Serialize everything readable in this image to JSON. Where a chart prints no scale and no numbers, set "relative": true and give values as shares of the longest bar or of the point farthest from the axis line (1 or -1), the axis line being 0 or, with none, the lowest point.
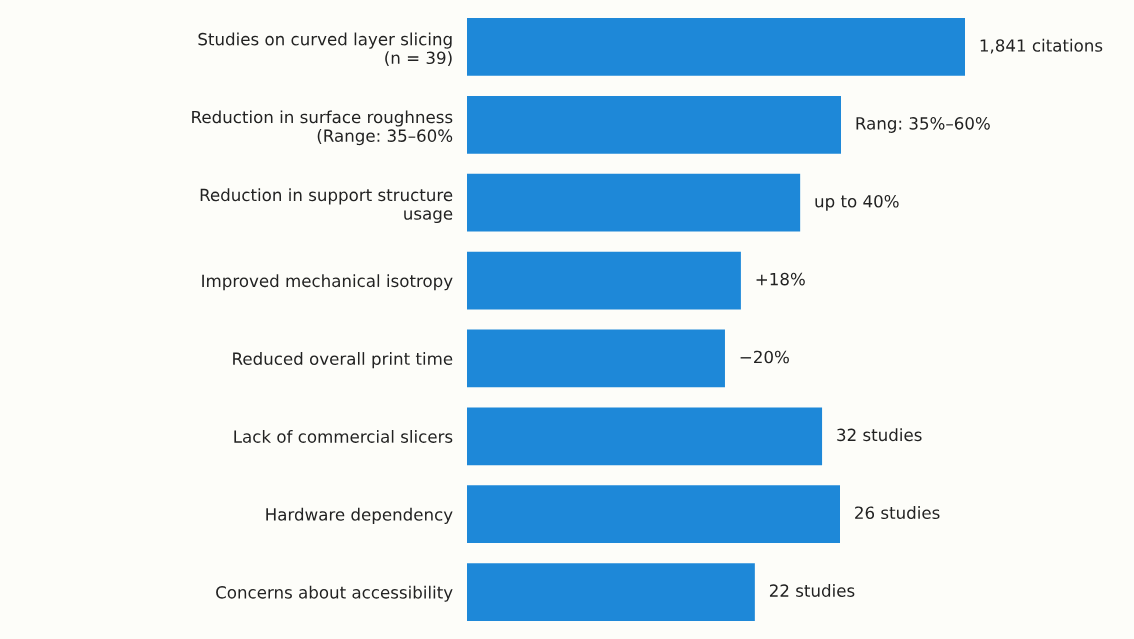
{
  "chart_data": {
    "type": "bar",
    "orientation": "horizontal",
    "relative": true,
    "categories": [
      "Studies on curved layer slicing\n(n = 39)",
      "Reduction in surface roughness\n(Range: 35–60%",
      "Reduction in support structure\nusage",
      "Improved mechanical isotropy",
      "Reduced overall print time",
      "Lack of commercial slicers",
      "Hardware dependency",
      "Concerns about accessibility"
    ],
    "values": [
      1,
      0.751,
      0.669,
      0.55,
      0.518,
      0.713,
      0.749,
      0.578
    ],
    "color": "#1e88d8",
    "annotations": [
      {
        "text": "1,841 citations",
        "x": 1,
        "y": "Studies on curved layer slicing\n(n = 39)"
      },
      {
        "text": "Rang: 35%–60%",
        "x": 0.751,
        "y": "Reduction in surface roughness\n(Range: 35–60%"
      },
      {
        "text": "up to 40%",
        "x": 0.669,
        "y": "Reduction in support structure\nusage"
      },
      {
        "text": "+18%",
        "x": 0.55,
        "y": "Improved mechanical isotropy"
      },
      {
        "text": "−20%",
        "x": 0.518,
        "y": "Reduced overall print time"
      },
      {
        "text": "32 studies",
        "x": 0.713,
        "y": "Lack of commercial slicers"
      },
      {
        "text": "26 studies",
        "x": 0.749,
        "y": "Hardware dependency"
      },
      {
        "text": "22 studies",
        "x": 0.578,
        "y": "Concerns about accessibility"
      }
    ],
    "grid": false,
    "legend": false
  }
}
